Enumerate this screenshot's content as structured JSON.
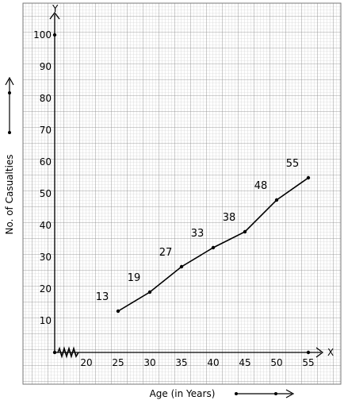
{
  "chart_data": {
    "type": "line",
    "title": "",
    "xlabel": "Age (in Years)",
    "ylabel": "No. of Casualties",
    "x_axis_letter": "X",
    "y_axis_letter": "Y",
    "x": [
      25,
      30,
      35,
      40,
      45,
      50,
      55
    ],
    "y": [
      13,
      19,
      27,
      33,
      38,
      48,
      55
    ],
    "data_labels": [
      "13",
      "19",
      "27",
      "33",
      "38",
      "48",
      "55"
    ],
    "x_ticks": [
      "20",
      "25",
      "30",
      "35",
      "40",
      "45",
      "50",
      "55"
    ],
    "y_ticks": [
      "10",
      "20",
      "30",
      "40",
      "50",
      "60",
      "70",
      "80",
      "90",
      "100"
    ],
    "xlim": [
      15,
      55
    ],
    "ylim": [
      0,
      100
    ],
    "x_axis_break": true,
    "grid": true,
    "line_color": "#000000"
  }
}
